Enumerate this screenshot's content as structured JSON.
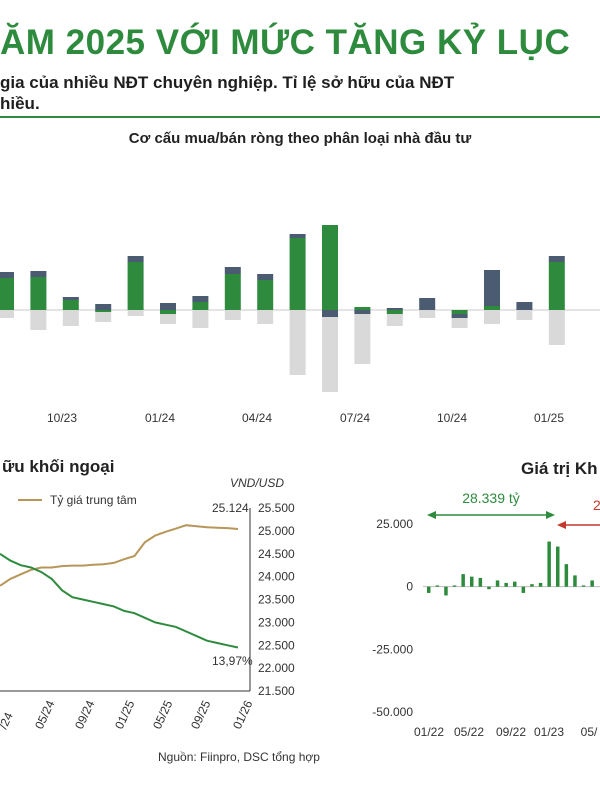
{
  "header": {
    "title": "ĂM 2025 VỚI MỨC TĂNG KỶ LỤC",
    "subtitle_line1": "gia của nhiều NĐT chuyên nghiệp. Tỉ lệ sở hữu của NĐT",
    "subtitle_line2": "hiều."
  },
  "colors": {
    "green": "#2e8b3e",
    "slate": "#4b5b72",
    "grey": "#d9d9d9",
    "gold": "#b8965a",
    "red": "#c0392b"
  },
  "chart_data": [
    {
      "type": "bar",
      "title": "Cơ cấu mua/bán ròng theo phân loại nhà đầu tư",
      "x_tick_labels": [
        "10/23",
        "01/24",
        "04/24",
        "07/24",
        "10/24",
        "01/25"
      ],
      "series": [
        {
          "values": [
            32,
            33,
            10,
            -2,
            48,
            -4,
            8,
            36,
            30,
            72,
            85,
            3,
            -4,
            0,
            -4,
            4,
            0,
            48
          ]
        },
        {
          "values": [
            6,
            6,
            3,
            6,
            6,
            7,
            6,
            7,
            6,
            4,
            -7,
            -4,
            2,
            12,
            -4,
            36,
            8,
            6
          ]
        },
        {
          "values": [
            -8,
            -20,
            -16,
            -10,
            -6,
            -10,
            -18,
            -10,
            -14,
            -65,
            -75,
            -50,
            -12,
            -8,
            -10,
            -14,
            -10,
            -35
          ]
        }
      ]
    },
    {
      "type": "line",
      "title": "ữu khối ngoại",
      "y_right_label": "VND/USD",
      "y_right_ticks": [
        "25.500",
        "25.000",
        "24.500",
        "24.000",
        "23.500",
        "23.000",
        "22.500",
        "22.000",
        "21.500"
      ],
      "ylim_right": [
        21500,
        25500
      ],
      "x_tick_labels": [
        "/24",
        "05/24",
        "09/24",
        "01/25",
        "05/25",
        "09/25",
        "01/26"
      ],
      "series": [
        {
          "name": "Tỷ giá trung tâm",
          "values": [
            23800,
            23950,
            24050,
            24150,
            24200,
            24200,
            24230,
            24240,
            24240,
            24260,
            24270,
            24300,
            24380,
            24450,
            24750,
            24900,
            24980,
            25050,
            25124,
            25100,
            25080,
            25070,
            25060,
            25040
          ]
        },
        {
          "values": [
            24500,
            24350,
            24250,
            24200,
            24100,
            23950,
            23700,
            23550,
            23500,
            23450,
            23400,
            23350,
            23250,
            23200,
            23100,
            23000,
            22950,
            22900,
            22800,
            22700,
            22600,
            22550,
            22500,
            22450
          ]
        }
      ],
      "annotations": [
        "25.124",
        "13,97%"
      ]
    },
    {
      "type": "bar",
      "title": "Giá trị Kh",
      "y_ticks": [
        "25.000",
        "0",
        "-25.000",
        "-50.000"
      ],
      "ylim": [
        -50000,
        25000
      ],
      "x_tick_labels": [
        "01/22",
        "05/22",
        "09/22",
        "01/23",
        "05/"
      ],
      "values": [
        -2500,
        500,
        -3500,
        500,
        5000,
        4000,
        3500,
        -1000,
        2500,
        1500,
        2000,
        -2500,
        1000,
        1500,
        18000,
        16000,
        9000,
        4500,
        500,
        2500
      ],
      "annotations": [
        "28.339 tỷ",
        "2"
      ]
    }
  ],
  "source": "Nguồn: Fiinpro, DSC tổng hợp"
}
